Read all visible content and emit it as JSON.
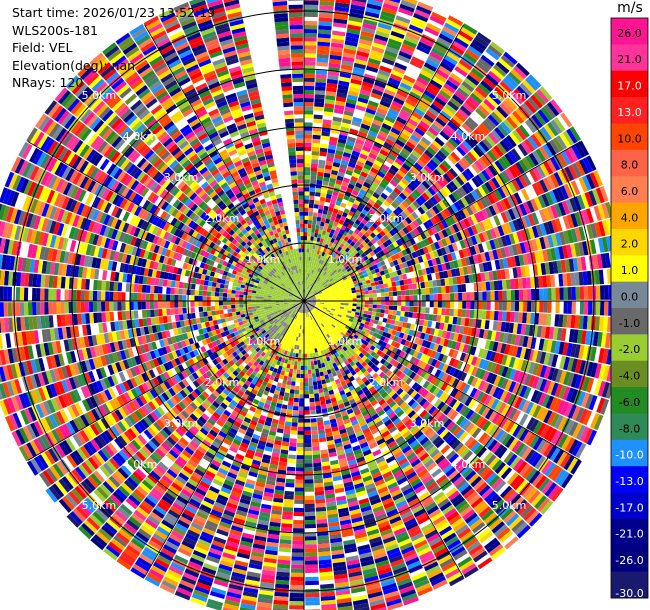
{
  "info": {
    "start_time": "Start time: 2026/01/23 13:52:19",
    "instrument": "WLS200s-181",
    "field": "Field: VEL",
    "elevation": "Elevation(deg): nan",
    "nrays": "NRays: 120"
  },
  "chart_data": {
    "type": "heatmap",
    "subtype": "polar-ppi",
    "field": "VEL",
    "units": "m/s",
    "range_rings_km": [
      1.0,
      2.0,
      3.0,
      4.0,
      5.0
    ],
    "range_ring_labels": [
      "1.0km",
      "2.0km",
      "3.0km",
      "4.0km",
      "5.0km"
    ],
    "n_rays": 120,
    "max_range_km": 5.5,
    "colorbar": {
      "ticks": [
        "26.0",
        "21.0",
        "17.0",
        "13.0",
        "10.0",
        "8.0",
        "6.0",
        "4.0",
        "2.0",
        "1.0",
        "0.0",
        "-1.0",
        "-2.0",
        "-4.0",
        "-6.0",
        "-8.0",
        "-10.0",
        "-13.0",
        "-17.0",
        "-21.0",
        "-26.0",
        "-30.0"
      ],
      "colors": [
        "#ff1493",
        "#ff3399",
        "#ff0000",
        "#ff2020",
        "#ff4500",
        "#ff6347",
        "#ff7f50",
        "#ffa500",
        "#ffd700",
        "#ffff00",
        "#778899",
        "#696969",
        "#9acd32",
        "#6b8e23",
        "#228b22",
        "#2e8b57",
        "#1e90ff",
        "#0000ff",
        "#0000cd",
        "#00008b",
        "#000080",
        "#191970"
      ]
    },
    "near_field": {
      "positive_color": "#ffff00",
      "negative_color": "#9acd32",
      "zero_color": "#808080"
    },
    "gap_azimuths_deg": [
      -10,
      -8
    ]
  }
}
